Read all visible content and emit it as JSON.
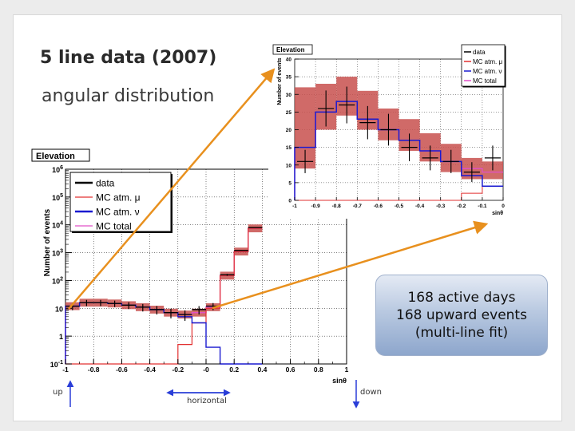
{
  "slide": {
    "title": "5 line data (2007)",
    "subtitle": "angular distribution",
    "callout": [
      "168 active days",
      "168 upward events",
      "(multi-line fit)"
    ],
    "dir_up": "up",
    "dir_horizontal": "horizontal",
    "dir_down": "down",
    "colors": {
      "arrow": "#e8901e",
      "band": "#c8504e",
      "mc_mu": "#e23030",
      "mc_nu": "#1a1ad0",
      "mc_total": "#e050c8",
      "data": "#000000"
    }
  },
  "chart_data": [
    {
      "type": "histogram",
      "title": "Elevation",
      "xlabel": "sinθ",
      "ylabel": "Number of events",
      "xlim": [
        -1,
        1
      ],
      "ylim": [
        0.1,
        1000000
      ],
      "log_y": true,
      "grid": true,
      "legend": "top-left",
      "xticks": [
        "-1",
        "-0.8",
        "-0.6",
        "-0.4",
        "-0.2",
        "-0",
        "0.2",
        "0.4",
        "0.6",
        "0.8",
        "1"
      ],
      "yticks": [
        "10-1",
        "1",
        "10",
        "102",
        "103",
        "104",
        "105",
        "106"
      ],
      "bin_width": 0.1,
      "bin_edges": [
        -1.0,
        -0.9,
        -0.8,
        -0.7,
        -0.6,
        -0.5,
        -0.4,
        -0.3,
        -0.2,
        -0.1,
        0.0,
        0.1,
        0.2,
        0.3,
        0.4
      ],
      "series": [
        {
          "name": "data",
          "values": [
            12,
            16,
            16,
            15,
            13,
            11,
            9,
            7,
            6,
            9,
            12,
            160,
            1200,
            8000
          ]
        },
        {
          "name": "MC atm. μ",
          "values": [
            0,
            0,
            0,
            0,
            0,
            0,
            0,
            0,
            0.5,
            3,
            10,
            150,
            1100,
            7500
          ]
        },
        {
          "name": "MC atm. ν",
          "values": [
            12,
            16,
            16,
            15,
            13,
            11,
            9,
            7,
            5,
            3,
            0.4,
            0,
            0,
            0
          ]
        },
        {
          "name": "MC total",
          "values": [
            12,
            16,
            16,
            15,
            13,
            11,
            9,
            7,
            6,
            7,
            11,
            150,
            1100,
            7500
          ]
        }
      ]
    },
    {
      "type": "histogram",
      "title": "Elevation",
      "xlabel": "sinθ",
      "ylabel": "Number of events",
      "xlim": [
        -1,
        0
      ],
      "ylim": [
        0,
        40
      ],
      "grid": true,
      "legend": "top-right",
      "xticks": [
        "-1",
        "-0.9",
        "-0.8",
        "-0.7",
        "-0.6",
        "-0.5",
        "-0.4",
        "-0.3",
        "-0.2",
        "-0.1",
        "0"
      ],
      "yticks": [
        "0",
        "5",
        "10",
        "15",
        "20",
        "25",
        "30",
        "35",
        "40"
      ],
      "bin_edges": [
        -1.0,
        -0.9,
        -0.8,
        -0.7,
        -0.6,
        -0.5,
        -0.4,
        -0.3,
        -0.2,
        -0.1,
        0.0
      ],
      "series": [
        {
          "name": "data",
          "values": [
            11,
            26,
            27,
            22,
            20,
            15,
            12,
            11,
            8,
            12
          ]
        },
        {
          "name": "MC atm. μ",
          "values": [
            0,
            0,
            0,
            0,
            0,
            0,
            0,
            0,
            2,
            4
          ]
        },
        {
          "name": "MC atm. ν",
          "values": [
            15,
            25,
            28,
            23,
            20,
            17,
            14,
            11,
            7,
            4
          ]
        },
        {
          "name": "MC total",
          "values": [
            15,
            25,
            28,
            23,
            20,
            17,
            14,
            11,
            9,
            8
          ]
        }
      ],
      "band": {
        "low": [
          9,
          20,
          24,
          20,
          17,
          14,
          11,
          8,
          6,
          6
        ],
        "high": [
          32,
          33,
          35,
          31,
          26,
          23,
          19,
          16,
          12,
          11
        ]
      },
      "data_errors": [
        3.3,
        5.1,
        5.2,
        4.7,
        4.5,
        3.9,
        3.5,
        3.3,
        2.8,
        3.5
      ]
    }
  ]
}
